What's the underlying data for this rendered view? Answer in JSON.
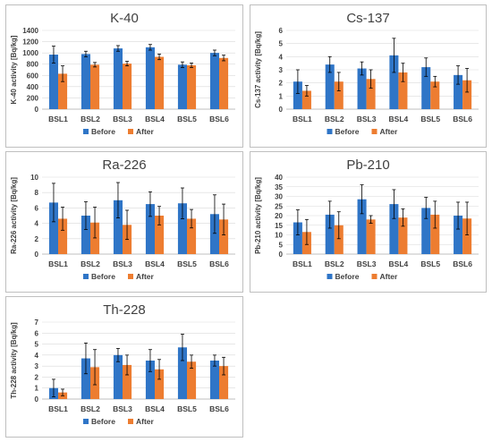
{
  "legend": {
    "before": "Before",
    "after": "After"
  },
  "colors": {
    "before": "#2f75c7",
    "after": "#ed7d31"
  },
  "chart_data": [
    {
      "id": "k40",
      "type": "bar",
      "title": "K-40",
      "ylabel": "K-40 activity [Bq/kg]",
      "categories": [
        "BSL1",
        "BSL2",
        "BSL3",
        "BSL4",
        "BSL5",
        "BSL6"
      ],
      "ylim": [
        0,
        1400
      ],
      "yticks": [
        0,
        200,
        400,
        600,
        800,
        1000,
        1200,
        1400
      ],
      "grid": true,
      "legend_position": "bottom",
      "series": [
        {
          "name": "Before",
          "values": [
            970,
            980,
            1080,
            1100,
            790,
            1000
          ],
          "errors": [
            150,
            50,
            50,
            50,
            50,
            50
          ]
        },
        {
          "name": "After",
          "values": [
            630,
            790,
            810,
            930,
            780,
            910
          ],
          "errors": [
            140,
            40,
            40,
            50,
            40,
            50
          ]
        }
      ]
    },
    {
      "id": "cs137",
      "type": "bar",
      "title": "Cs-137",
      "ylabel": "Cs-137 activity [Bq/kg]",
      "categories": [
        "BSL1",
        "BSL2",
        "BSL3",
        "BSL4",
        "BSL5",
        "BSL6"
      ],
      "ylim": [
        0,
        6
      ],
      "yticks": [
        0,
        1,
        2,
        3,
        4,
        5,
        6
      ],
      "grid": true,
      "legend_position": "bottom",
      "series": [
        {
          "name": "Before",
          "values": [
            2.1,
            3.4,
            3.1,
            4.1,
            3.2,
            2.6
          ],
          "errors": [
            0.9,
            0.6,
            0.5,
            1.3,
            0.7,
            0.7
          ]
        },
        {
          "name": "After",
          "values": [
            1.4,
            2.1,
            2.3,
            2.8,
            2.1,
            2.2
          ],
          "errors": [
            0.4,
            0.7,
            0.7,
            0.7,
            0.4,
            0.9
          ]
        }
      ]
    },
    {
      "id": "ra226",
      "type": "bar",
      "title": "Ra-226",
      "ylabel": "Ra-226 activity [Bq/kg]",
      "categories": [
        "BSL1",
        "BSL2",
        "BSL3",
        "BSL4",
        "BSL5",
        "BSL6"
      ],
      "ylim": [
        0,
        10
      ],
      "yticks": [
        0,
        2,
        4,
        6,
        8,
        10
      ],
      "grid": true,
      "legend_position": "bottom",
      "series": [
        {
          "name": "Before",
          "values": [
            6.7,
            5.0,
            7.0,
            6.5,
            6.6,
            5.2
          ],
          "errors": [
            2.5,
            1.8,
            2.3,
            1.6,
            2.0,
            2.5
          ]
        },
        {
          "name": "After",
          "values": [
            4.6,
            4.1,
            3.8,
            5.0,
            4.6,
            4.5
          ],
          "errors": [
            1.5,
            2.0,
            1.9,
            1.2,
            1.2,
            2.0
          ]
        }
      ]
    },
    {
      "id": "pb210",
      "type": "bar",
      "title": "Pb-210",
      "ylabel": "Pb-210 activity [Bq/kg]",
      "categories": [
        "BSL1",
        "BSL2",
        "BSL3",
        "BSL4",
        "BSL5",
        "BSL6"
      ],
      "ylim": [
        0,
        40
      ],
      "yticks": [
        0,
        5,
        10,
        15,
        20,
        25,
        30,
        35,
        40
      ],
      "grid": true,
      "legend_position": "bottom",
      "series": [
        {
          "name": "Before",
          "values": [
            16.5,
            20.5,
            28.5,
            26.0,
            24.0,
            20.0
          ],
          "errors": [
            6.5,
            7.0,
            7.5,
            7.5,
            5.5,
            7.0
          ]
        },
        {
          "name": "After",
          "values": [
            11.5,
            15.0,
            18.0,
            19.0,
            20.5,
            18.5
          ],
          "errors": [
            6.5,
            7.0,
            2.0,
            4.5,
            7.0,
            8.5
          ]
        }
      ]
    },
    {
      "id": "th228",
      "type": "bar",
      "title": "Th-228",
      "ylabel": "Th-228 activity [Bq/kg]",
      "categories": [
        "BSL1",
        "BSL2",
        "BSL3",
        "BSL4",
        "BSL5",
        "BSL6"
      ],
      "ylim": [
        0,
        7
      ],
      "yticks": [
        0,
        1,
        2,
        3,
        4,
        5,
        6,
        7
      ],
      "grid": true,
      "legend_position": "bottom",
      "series": [
        {
          "name": "Before",
          "values": [
            1.0,
            3.7,
            4.0,
            3.5,
            4.7,
            3.5
          ],
          "errors": [
            0.8,
            1.4,
            0.6,
            1.0,
            1.2,
            0.5
          ]
        },
        {
          "name": "After",
          "values": [
            0.6,
            2.9,
            3.1,
            2.7,
            3.4,
            3.0
          ],
          "errors": [
            0.3,
            1.6,
            0.9,
            0.9,
            0.6,
            0.8
          ]
        }
      ]
    }
  ]
}
